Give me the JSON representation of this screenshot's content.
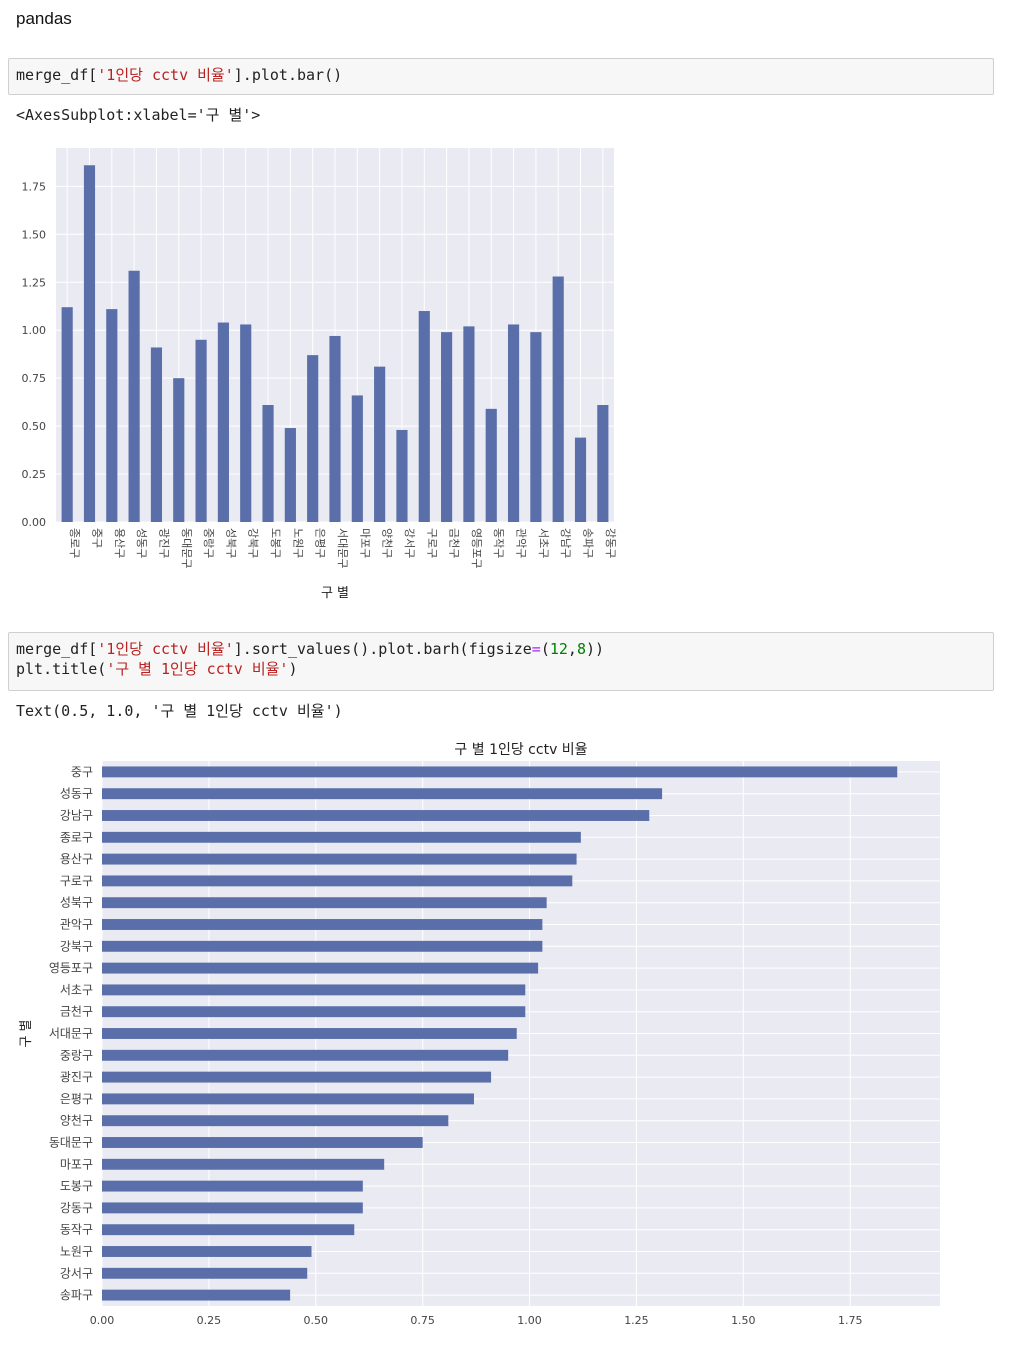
{
  "page": {
    "heading": "pandas"
  },
  "cell1": {
    "code_prefix": "merge_df[",
    "code_string": "'1인당 cctv 비율'",
    "code_suffix": "].plot.bar()",
    "output": "<AxesSubplot:xlabel='구 별'>"
  },
  "cell2": {
    "line1_prefix": "merge_df[",
    "line1_string": "'1인당 cctv 비율'",
    "line1_mid": "].sort_values().plot.barh(figsize",
    "line1_eq": "=",
    "line1_open": "(",
    "line1_n1": "12",
    "line1_comma": ",",
    "line1_n2": "8",
    "line1_close": "))",
    "line2_prefix": "plt.title(",
    "line2_string": "'구 별 1인당 cctv 비율'",
    "line2_suffix": ")",
    "output": "Text(0.5, 1.0, '구 별 1인당 cctv 비율')"
  },
  "colors": {
    "bar": "#5a6fa9",
    "plot_bg": "#eaeaf2",
    "grid": "#ffffff",
    "tick_text": "#444444"
  },
  "chart_data": [
    {
      "type": "bar",
      "title": "",
      "xlabel": "구 별",
      "ylabel": "",
      "ylim": [
        0,
        1.95
      ],
      "yticks": [
        "0.00",
        "0.25",
        "0.50",
        "0.75",
        "1.00",
        "1.25",
        "1.50",
        "1.75"
      ],
      "grid": true,
      "categories": [
        "종로구",
        "중구",
        "용산구",
        "성동구",
        "광진구",
        "동대문구",
        "중랑구",
        "성북구",
        "강북구",
        "도봉구",
        "노원구",
        "은평구",
        "서대문구",
        "마포구",
        "양천구",
        "강서구",
        "구로구",
        "금천구",
        "영등포구",
        "동작구",
        "관악구",
        "서초구",
        "강남구",
        "송파구",
        "강동구"
      ],
      "values": [
        1.12,
        1.86,
        1.11,
        1.31,
        0.91,
        0.75,
        0.95,
        1.04,
        1.03,
        0.61,
        0.49,
        0.87,
        0.97,
        0.66,
        0.81,
        0.48,
        1.1,
        0.99,
        1.02,
        0.59,
        1.03,
        0.99,
        1.28,
        0.44,
        0.61
      ]
    },
    {
      "type": "bar",
      "orientation": "horizontal",
      "title": "구 별 1인당 cctv 비율",
      "xlabel": "",
      "ylabel": "구 별",
      "xlim": [
        0,
        1.96
      ],
      "xticks": [
        "0.00",
        "0.25",
        "0.50",
        "0.75",
        "1.00",
        "1.25",
        "1.50",
        "1.75"
      ],
      "grid": true,
      "categories": [
        "중구",
        "성동구",
        "강남구",
        "종로구",
        "용산구",
        "구로구",
        "성북구",
        "관악구",
        "강북구",
        "영등포구",
        "서초구",
        "금천구",
        "서대문구",
        "중랑구",
        "광진구",
        "은평구",
        "양천구",
        "동대문구",
        "마포구",
        "도봉구",
        "강동구",
        "동작구",
        "노원구",
        "강서구",
        "송파구"
      ],
      "values": [
        1.86,
        1.31,
        1.28,
        1.12,
        1.11,
        1.1,
        1.04,
        1.03,
        1.03,
        1.02,
        0.99,
        0.99,
        0.97,
        0.95,
        0.91,
        0.87,
        0.81,
        0.75,
        0.66,
        0.61,
        0.61,
        0.59,
        0.49,
        0.48,
        0.44
      ]
    }
  ]
}
